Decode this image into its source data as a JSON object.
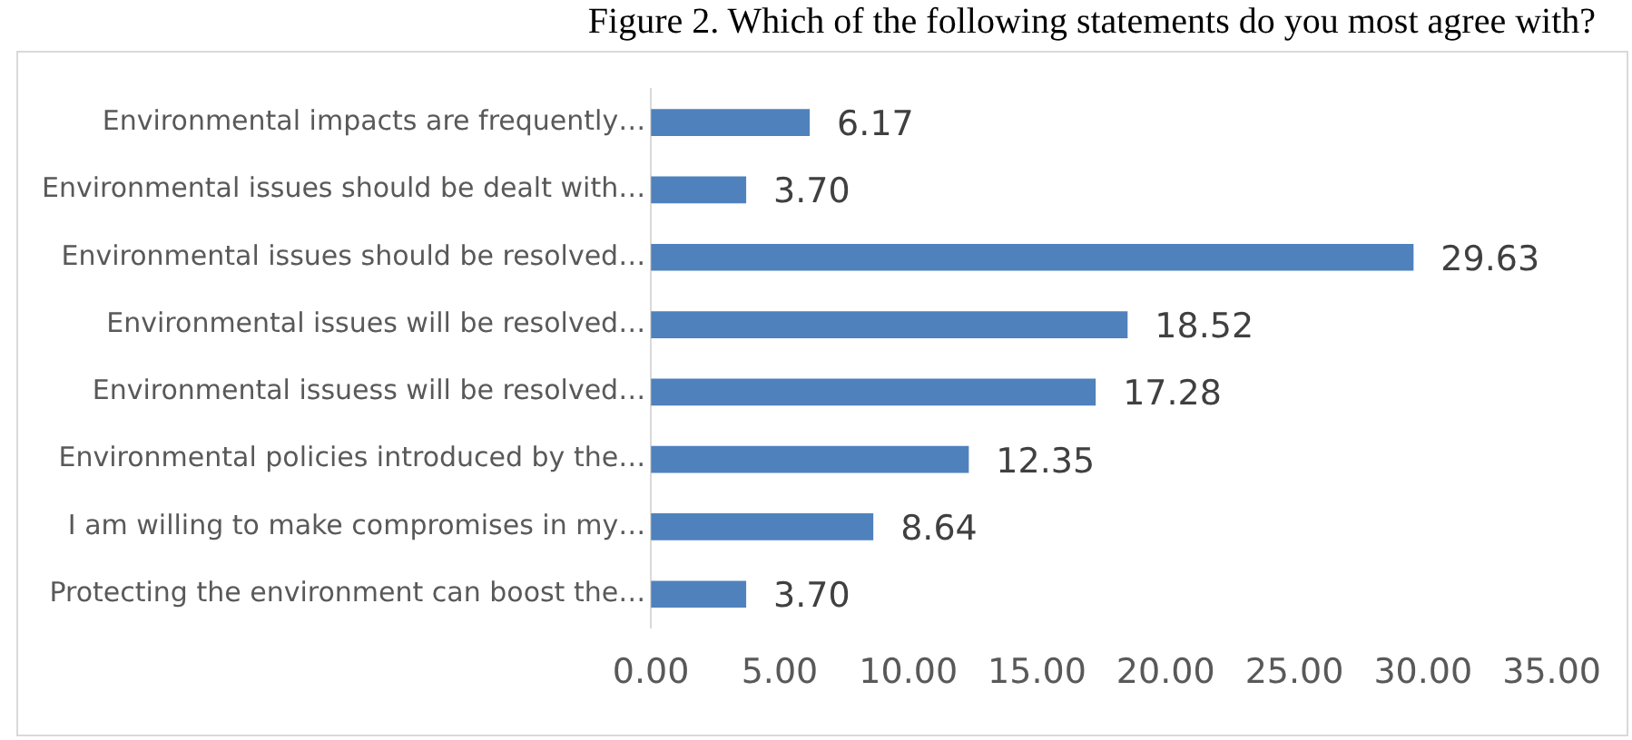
{
  "chart_data": {
    "type": "bar",
    "orientation": "horizontal",
    "title": "Figure 2. Which of the following statements do you most agree with?",
    "categories": [
      "Environmental impacts are frequently…",
      "Environmental issues should be dealt with…",
      "Environmental issues should be resolved…",
      "Environmental issues will be resolved…",
      "Environmental issuess will be resolved…",
      "Environmental policies introduced by the…",
      "I am willing to make compromises in my…",
      "Protecting the environment can boost the…"
    ],
    "values": [
      6.17,
      3.7,
      29.63,
      18.52,
      17.28,
      12.35,
      8.64,
      3.7
    ],
    "value_labels": [
      "6.17",
      "3.70",
      "29.63",
      "18.52",
      "17.28",
      "12.35",
      "8.64",
      "3.70"
    ],
    "color": "#4f81bd",
    "xlim": [
      0,
      35
    ],
    "xticks": [
      {
        "value": 0,
        "label": "0.00"
      },
      {
        "value": 5,
        "label": "5.00"
      },
      {
        "value": 10,
        "label": "10.00"
      },
      {
        "value": 15,
        "label": "15.00"
      },
      {
        "value": 20,
        "label": "20.00"
      },
      {
        "value": 25,
        "label": "25.00"
      },
      {
        "value": 30,
        "label": "30.00"
      },
      {
        "value": 35,
        "label": "35.00"
      }
    ],
    "grid": false,
    "legend": false
  }
}
